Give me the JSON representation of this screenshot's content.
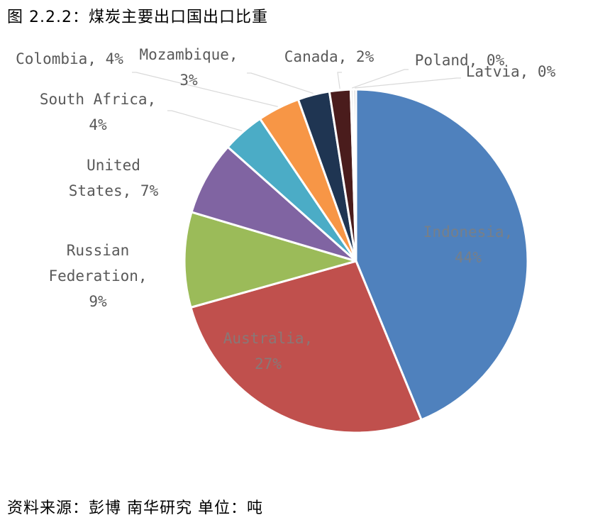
{
  "figure_title": "图 2.2.2：煤炭主要出口国出口比重",
  "source_note": "资料来源：彭博 南华研究 单位：吨",
  "chart_data": {
    "type": "pie",
    "title": "",
    "slices": [
      {
        "name": "Indonesia",
        "value": 44,
        "label": [
          "Indonesia,",
          "44%"
        ],
        "color": "#4f81bd"
      },
      {
        "name": "Australia",
        "value": 27,
        "label": [
          "Australia,",
          "27%"
        ],
        "color": "#c0504d"
      },
      {
        "name": "Russian Federation",
        "value": 9,
        "label": [
          "Russian",
          "Federation,",
          "9%"
        ],
        "color": "#9bbb59"
      },
      {
        "name": "United States",
        "value": 7,
        "label": [
          "United",
          "States, 7%"
        ],
        "color": "#8064a2"
      },
      {
        "name": "South Africa",
        "value": 4,
        "label": [
          "South Africa,",
          "4%"
        ],
        "color": "#4bacc6"
      },
      {
        "name": "Colombia",
        "value": 4,
        "label": [
          "Colombia, 4%"
        ],
        "color": "#f79646"
      },
      {
        "name": "Mozambique",
        "value": 3,
        "label": [
          "Mozambique,",
          "3%"
        ],
        "color": "#1f3552"
      },
      {
        "name": "Canada",
        "value": 2,
        "label": [
          "Canada, 2%"
        ],
        "color": "#4a1c1c"
      },
      {
        "name": "Poland",
        "value": 0,
        "label": [
          "Poland, 0%"
        ],
        "color": "#d9d9d9"
      },
      {
        "name": "Latvia",
        "value": 0,
        "label": [
          "Latvia, 0%"
        ],
        "color": "#bfbfbf"
      }
    ]
  }
}
